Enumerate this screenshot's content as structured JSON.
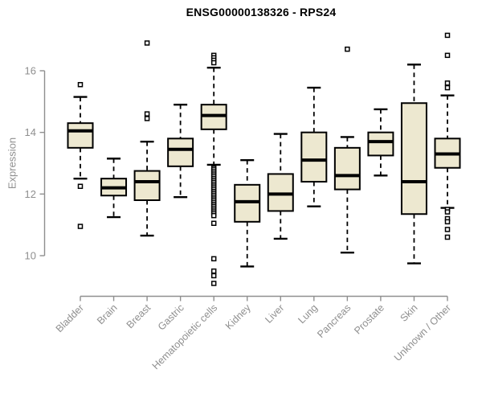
{
  "title": "ENSG00000138326 - RPS24",
  "style": {
    "background": "#ffffff",
    "box_fill": "#ede8d0",
    "box_stroke": "#000000",
    "median_color": "#000000",
    "whisker_color": "#000000",
    "outlier_stroke": "#000000",
    "axis_color": "#8f8f8f",
    "label_color": "#8f8f8f",
    "title_color": "#000000"
  },
  "chart_data": {
    "type": "boxplot",
    "title": "ENSG00000138326 - RPS24",
    "xlabel": "",
    "ylabel": "Expression",
    "ylim": [
      9.0,
      17.5
    ],
    "yticks": [
      10,
      12,
      14,
      16
    ],
    "grid": false,
    "legend": false,
    "categories": [
      "Bladder",
      "Brain",
      "Breast",
      "Gastric",
      "Hematopoietic cells",
      "Kidney",
      "Liver",
      "Lung",
      "Pancreas",
      "Prostate",
      "Skin",
      "Unknown / Other"
    ],
    "boxes": [
      {
        "label": "Bladder",
        "whisker_low": 12.5,
        "q1": 13.5,
        "median": 14.05,
        "q3": 14.3,
        "whisker_high": 15.15,
        "outliers": [
          15.55,
          12.25,
          10.95
        ]
      },
      {
        "label": "Brain",
        "whisker_low": 11.25,
        "q1": 11.95,
        "median": 12.2,
        "q3": 12.5,
        "whisker_high": 13.15,
        "outliers": []
      },
      {
        "label": "Breast",
        "whisker_low": 10.65,
        "q1": 11.8,
        "median": 12.4,
        "q3": 12.75,
        "whisker_high": 13.7,
        "outliers": [
          16.9,
          14.6,
          14.45
        ]
      },
      {
        "label": "Gastric",
        "whisker_low": 11.9,
        "q1": 12.9,
        "median": 13.45,
        "q3": 13.8,
        "whisker_high": 14.9,
        "outliers": []
      },
      {
        "label": "Hematopoietic cells",
        "whisker_low": 12.95,
        "q1": 14.1,
        "median": 14.55,
        "q3": 14.9,
        "whisker_high": 16.1,
        "outliers": [
          16.5,
          16.42,
          16.34,
          16.26,
          12.85,
          12.8,
          12.74,
          12.68,
          12.62,
          12.56,
          12.5,
          12.44,
          12.38,
          12.32,
          12.26,
          12.2,
          12.14,
          12.08,
          12.02,
          11.96,
          11.9,
          11.84,
          11.78,
          11.72,
          11.66,
          11.6,
          11.54,
          11.48,
          11.42,
          11.36,
          11.3,
          11.05,
          9.9,
          9.5,
          9.35,
          9.1
        ]
      },
      {
        "label": "Kidney",
        "whisker_low": 9.65,
        "q1": 11.1,
        "median": 11.75,
        "q3": 12.3,
        "whisker_high": 13.1,
        "outliers": []
      },
      {
        "label": "Liver",
        "whisker_low": 10.55,
        "q1": 11.45,
        "median": 12.0,
        "q3": 12.65,
        "whisker_high": 13.95,
        "outliers": []
      },
      {
        "label": "Lung",
        "whisker_low": 11.6,
        "q1": 12.4,
        "median": 13.1,
        "q3": 14.0,
        "whisker_high": 15.45,
        "outliers": []
      },
      {
        "label": "Pancreas",
        "whisker_low": 10.1,
        "q1": 12.15,
        "median": 12.6,
        "q3": 13.5,
        "whisker_high": 13.85,
        "outliers": [
          16.7
        ]
      },
      {
        "label": "Prostate",
        "whisker_low": 12.6,
        "q1": 13.25,
        "median": 13.7,
        "q3": 14.0,
        "whisker_high": 14.75,
        "outliers": []
      },
      {
        "label": "Skin",
        "whisker_low": 9.75,
        "q1": 11.35,
        "median": 12.4,
        "q3": 14.95,
        "whisker_high": 16.2,
        "outliers": []
      },
      {
        "label": "Unknown / Other",
        "whisker_low": 11.55,
        "q1": 12.85,
        "median": 13.3,
        "q3": 13.8,
        "whisker_high": 15.2,
        "outliers": [
          17.15,
          16.5,
          15.6,
          15.45,
          11.5,
          11.42,
          11.2,
          11.1,
          10.85,
          10.6
        ]
      }
    ]
  }
}
